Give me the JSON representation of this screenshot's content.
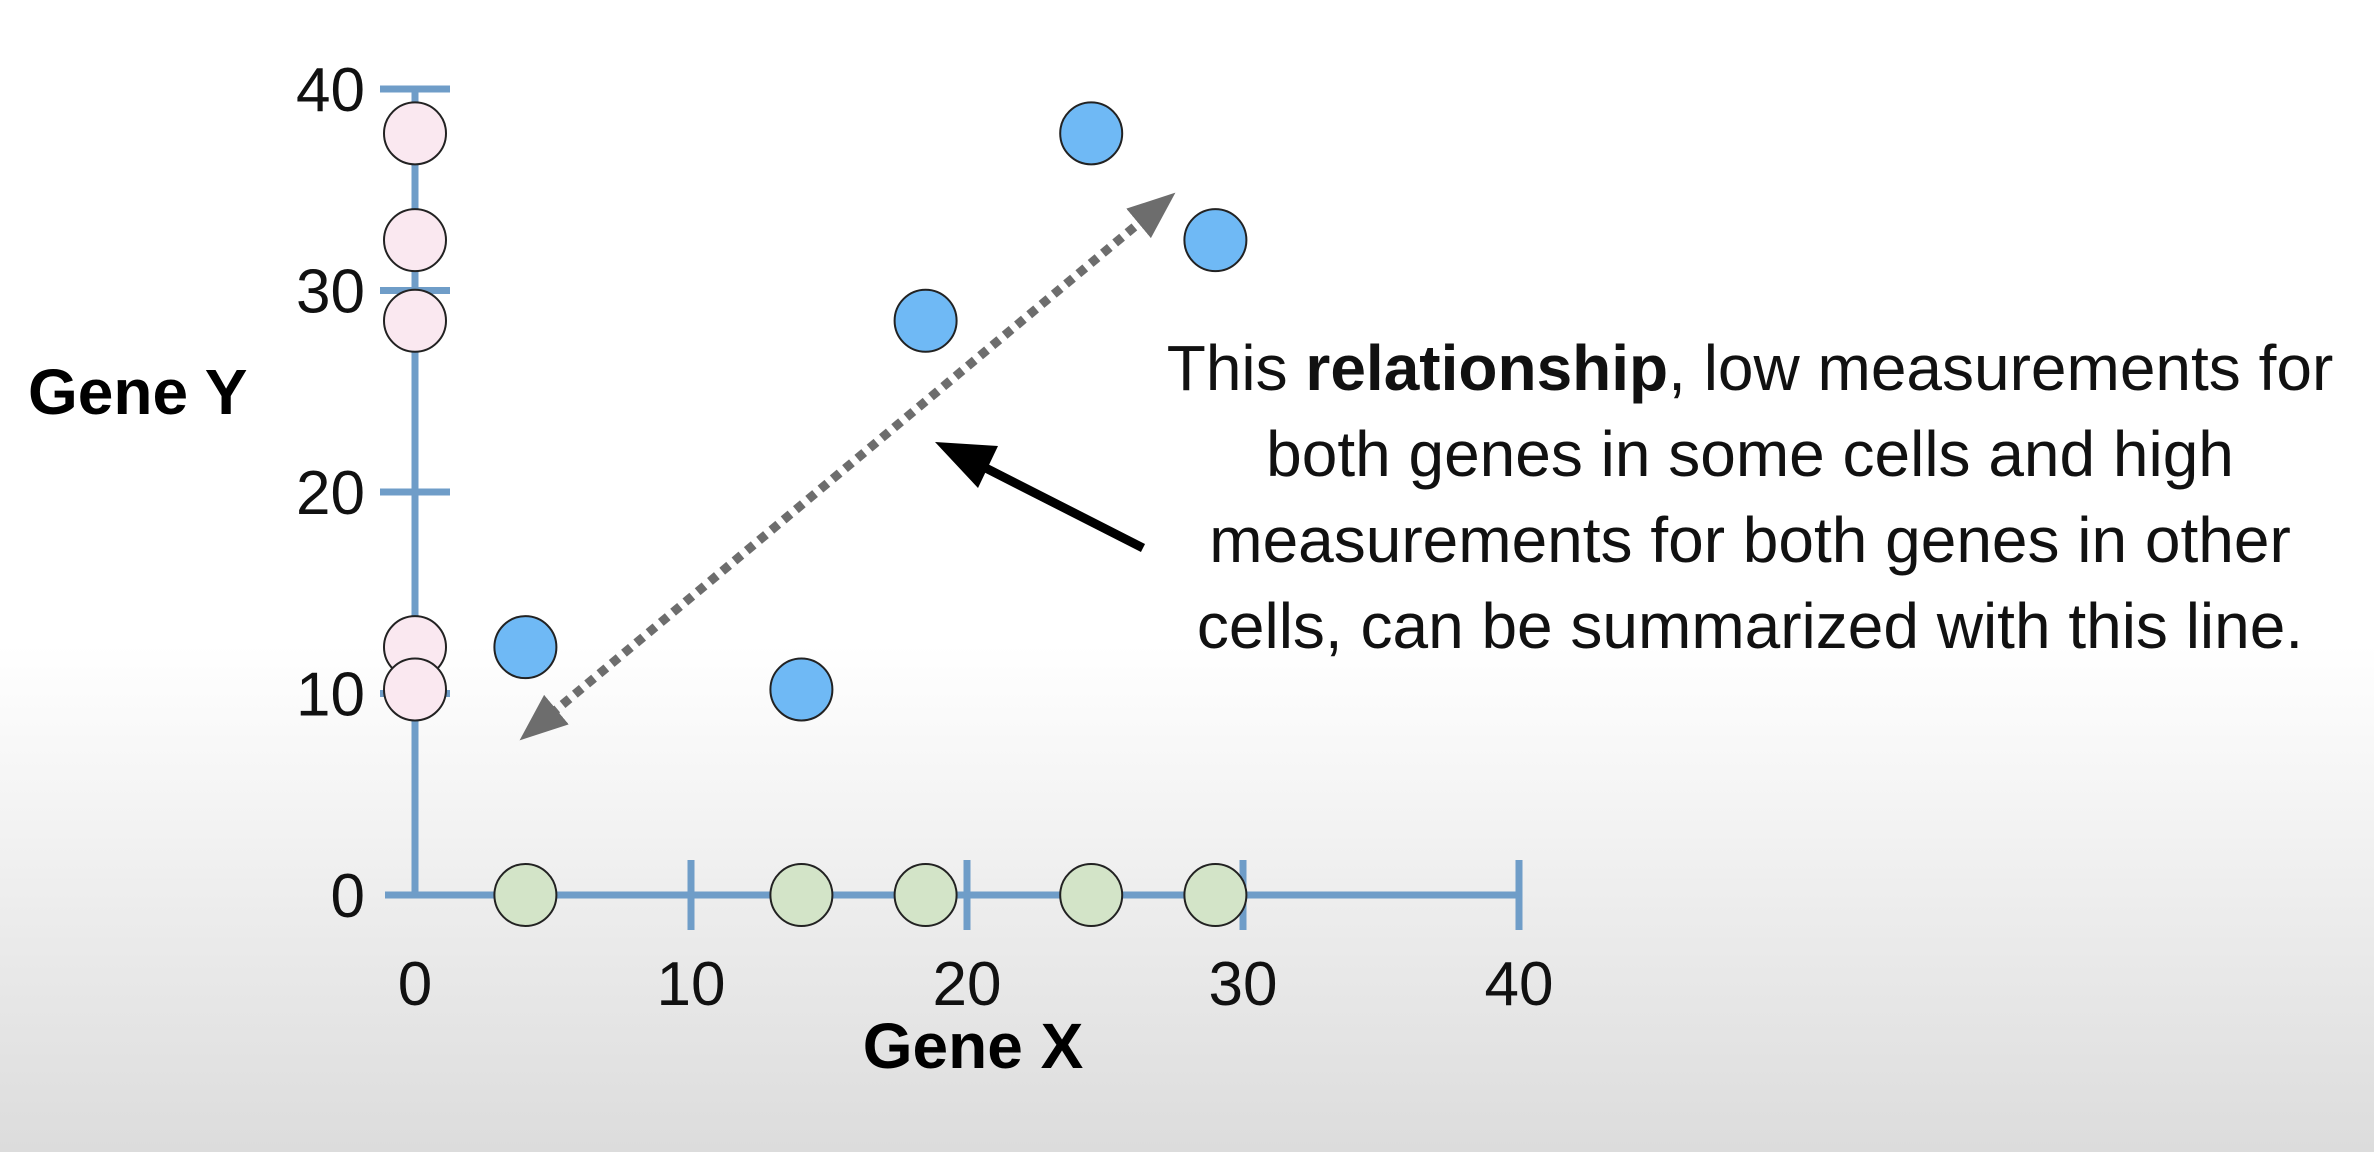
{
  "chart_data": {
    "type": "scatter",
    "xlabel": "Gene X",
    "ylabel": "Gene Y",
    "xlim": [
      0,
      40
    ],
    "ylim": [
      0,
      40
    ],
    "xticks": [
      "0",
      "10",
      "20",
      "30",
      "40"
    ],
    "yticks": [
      "0",
      "10",
      "20",
      "30",
      "40"
    ],
    "grid": false,
    "series": [
      {
        "color": "#6fb9f5",
        "points": [
          [
            4,
            12.3
          ],
          [
            14,
            10.2
          ],
          [
            18.5,
            28.5
          ],
          [
            24.5,
            37.8
          ],
          [
            29,
            32.5
          ]
        ]
      },
      {
        "color": "#fae8f0",
        "points": [
          [
            0,
            37.8
          ],
          [
            0,
            32.5
          ],
          [
            0,
            28.5
          ],
          [
            0,
            12.3
          ],
          [
            0,
            10.2
          ]
        ]
      },
      {
        "color": "#d3e4c8",
        "points": [
          [
            4,
            0
          ],
          [
            14,
            0
          ],
          [
            18.5,
            0
          ],
          [
            24.5,
            0
          ],
          [
            29,
            0
          ]
        ]
      }
    ],
    "annotation": {
      "prefix": "This ",
      "bold": "relationship",
      "suffix": ", low measurements for both genes in some cells and high measurements for both genes in other cells, can be summarized with this line."
    }
  },
  "colors": {
    "axis": "#6f9dc8",
    "arrow": "#000000",
    "dotted_line": "#6d6d6d",
    "point_outline": "#222222"
  }
}
